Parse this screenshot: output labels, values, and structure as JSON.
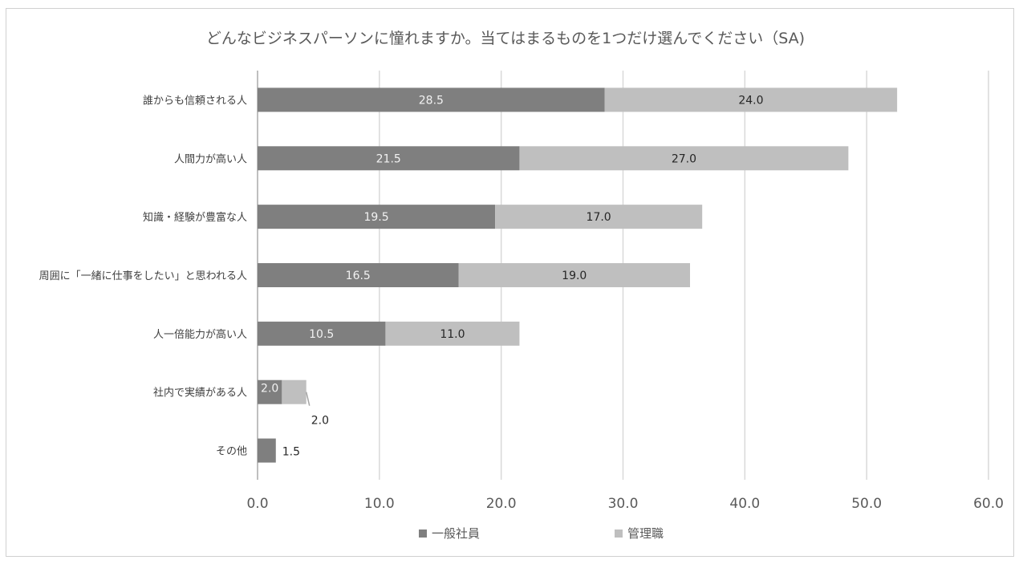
{
  "chart_data": {
    "type": "bar",
    "orientation": "horizontal",
    "stacked": true,
    "title": "どんなビジネスパーソンに憧れますか。当てはまるものを1つだけ選んでください（SA)",
    "categories": [
      "誰からも信頼される人",
      "人間力が高い人",
      "知識・経験が豊富な人",
      "周囲に「一緒に仕事をしたい」と思われる人",
      "人一倍能力が高い人",
      "社内で実績がある人",
      "その他"
    ],
    "series": [
      {
        "name": "一般社員",
        "color": "#7f7f7f",
        "values": [
          28.5,
          21.5,
          19.5,
          16.5,
          10.5,
          2.0,
          1.5
        ],
        "labels": [
          "28.5",
          "21.5",
          "19.5",
          "16.5",
          "10.5",
          "2.0",
          "1.5"
        ]
      },
      {
        "name": "管理職",
        "color": "#bfbfbf",
        "values": [
          24.0,
          27.0,
          17.0,
          19.0,
          11.0,
          2.0,
          0
        ],
        "labels": [
          "24.0",
          "27.0",
          "17.0",
          "19.0",
          "11.0",
          "2.0",
          ""
        ]
      }
    ],
    "xlim": [
      0,
      60
    ],
    "xticks": [
      "0.0",
      "10.0",
      "20.0",
      "30.0",
      "40.0",
      "50.0",
      "60.0"
    ],
    "grid": true,
    "legend": "bottom"
  }
}
